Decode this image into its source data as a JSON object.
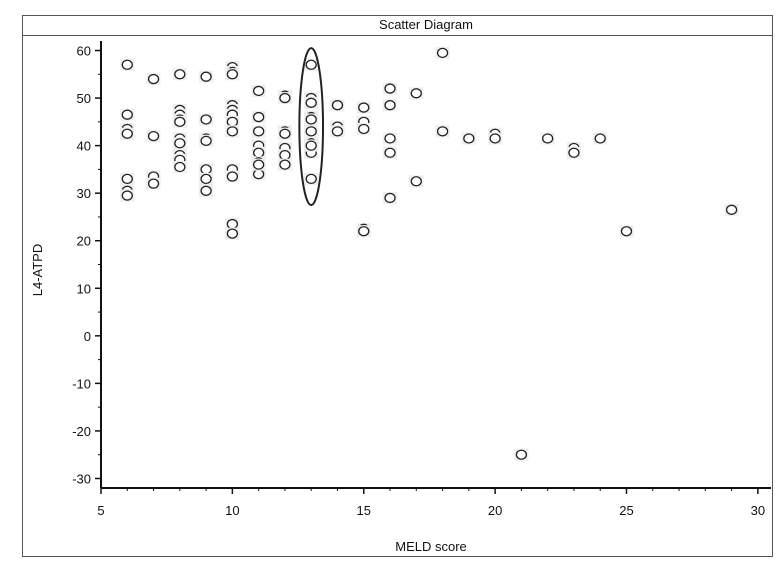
{
  "chart_data": {
    "type": "scatter",
    "title": "Scatter Diagram",
    "xlabel": "MELD score",
    "ylabel": "L4-ATPD",
    "xlim": [
      5,
      30.5
    ],
    "ylim": [
      -32,
      62
    ],
    "x_ticks": [
      5,
      10,
      15,
      20,
      25,
      30
    ],
    "y_ticks": [
      -30,
      -20,
      -10,
      0,
      10,
      20,
      30,
      40,
      50,
      60
    ],
    "grid": false,
    "legend": "none",
    "colors": {
      "marker_stroke": "#222222",
      "axis": "#111111",
      "ellipse": "#222222"
    },
    "annotation": {
      "shape": "ellipse",
      "center_x": 13,
      "center_y": 44,
      "rx": 0.45,
      "ry": 16.5
    },
    "series": [
      {
        "x": [
          6,
          6,
          6,
          6,
          6,
          6,
          6,
          7,
          7,
          7,
          7,
          8,
          8,
          8,
          8,
          8,
          8,
          8,
          8,
          8,
          8,
          9,
          9,
          9,
          9,
          9,
          9,
          9,
          10,
          10,
          10,
          10,
          10,
          10,
          10,
          10,
          10,
          10,
          10,
          10,
          10,
          11,
          11,
          11,
          11,
          11,
          11,
          11,
          11,
          12,
          12,
          12,
          12,
          12,
          12,
          12,
          13,
          13,
          13,
          13,
          13,
          13,
          13,
          13,
          13,
          13,
          13,
          14,
          14,
          14,
          15,
          15,
          15,
          15,
          15,
          16,
          16,
          16,
          16,
          16,
          17,
          17,
          18,
          18,
          19,
          20,
          20,
          21,
          22,
          23,
          23,
          24,
          25,
          29
        ],
        "y": [
          57,
          46.5,
          43.5,
          42.5,
          33,
          30.5,
          29.5,
          54,
          42,
          33.5,
          32,
          55,
          47.5,
          46.5,
          45.5,
          41.5,
          40.5,
          38,
          37,
          35.5,
          45,
          54.5,
          45.5,
          41.5,
          35,
          33,
          30.5,
          41,
          56.5,
          55.5,
          55,
          48.5,
          47.5,
          46.5,
          45,
          43,
          35,
          33.5,
          23.5,
          21.5,
          43,
          51.5,
          46,
          43,
          40,
          38.5,
          36.5,
          34,
          36,
          50.5,
          50,
          43,
          39.5,
          38,
          36,
          42.5,
          57,
          50,
          49,
          46,
          43.5,
          43,
          40.5,
          38.5,
          33,
          45.5,
          40,
          48.5,
          44,
          43,
          48,
          45,
          43.5,
          22.5,
          22,
          52,
          48.5,
          41.5,
          38.5,
          29,
          51,
          32.5,
          59.5,
          43,
          41.5,
          42.5,
          41.5,
          -25,
          41.5,
          39.5,
          38.5,
          41.5,
          22,
          26.5
        ]
      }
    ]
  }
}
